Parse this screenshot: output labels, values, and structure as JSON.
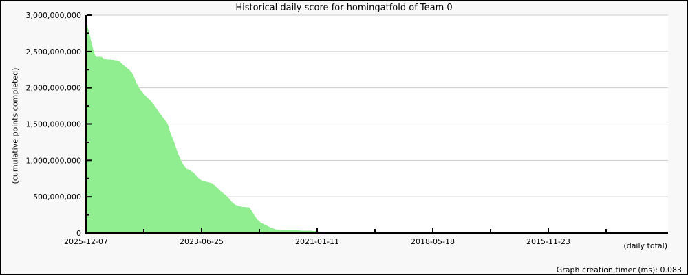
{
  "page": {
    "background_color": "#f8f8f8",
    "plot_background_color": "#ffffff",
    "border_color": "#000000"
  },
  "chart_data": {
    "type": "area",
    "title": "Historical daily score for homingatfold of Team 0",
    "ylabel": "(cumulative points completed)",
    "xlabel": "(daily total)",
    "footer": "Graph creation timer (ms): 0.083",
    "fill_color": "#90ee90",
    "grid_color": "#cccccc",
    "axis_color": "#000000",
    "grid": "horizontal major gridlines only",
    "legend": false,
    "ylim_points": [
      0,
      3000000000
    ],
    "y_tick_labels": [
      "3,000,000,000",
      "2,500,000,000",
      "2,000,000,000",
      "1,500,000,000",
      "1,000,000,000",
      "500,000,000",
      "0"
    ],
    "y_tick_values_millions": [
      3000,
      2500,
      2000,
      1500,
      1000,
      500,
      0
    ],
    "y_minor_tick_values_millions": [
      2750,
      2250,
      1750,
      1250,
      750,
      250
    ],
    "x_tick_labels": [
      "2025-12-07",
      "2023-06-25",
      "2021-01-11",
      "2018-05-18",
      "2015-11-23"
    ],
    "x_axis_note": "dates decrease to the right (newest at left), labeled ticks about 896 days apart with one unlabeled minor tick between each pair",
    "series": [
      {
        "name": "homingatfold cumulative points completed",
        "units": "points (values stored in millions)",
        "points_x_fraction_value_millions": [
          [
            0.0012,
            2880
          ],
          [
            0.0035,
            2800
          ],
          [
            0.0059,
            2720
          ],
          [
            0.0083,
            2640
          ],
          [
            0.0106,
            2560
          ],
          [
            0.013,
            2490
          ],
          [
            0.0154,
            2440
          ],
          [
            0.0177,
            2425
          ],
          [
            0.0272,
            2420
          ],
          [
            0.0296,
            2390
          ],
          [
            0.0414,
            2385
          ],
          [
            0.0567,
            2370
          ],
          [
            0.0591,
            2345
          ],
          [
            0.0627,
            2320
          ],
          [
            0.0662,
            2295
          ],
          [
            0.0709,
            2265
          ],
          [
            0.0745,
            2240
          ],
          [
            0.078,
            2210
          ],
          [
            0.0804,
            2180
          ],
          [
            0.0827,
            2130
          ],
          [
            0.0851,
            2080
          ],
          [
            0.0887,
            2030
          ],
          [
            0.0922,
            1975
          ],
          [
            0.0969,
            1930
          ],
          [
            0.1017,
            1890
          ],
          [
            0.1064,
            1850
          ],
          [
            0.1111,
            1815
          ],
          [
            0.1158,
            1765
          ],
          [
            0.1206,
            1715
          ],
          [
            0.1253,
            1655
          ],
          [
            0.13,
            1605
          ],
          [
            0.1348,
            1560
          ],
          [
            0.1383,
            1525
          ],
          [
            0.1418,
            1450
          ],
          [
            0.1454,
            1350
          ],
          [
            0.1501,
            1270
          ],
          [
            0.1537,
            1180
          ],
          [
            0.1584,
            1075
          ],
          [
            0.1631,
            990
          ],
          [
            0.1679,
            925
          ],
          [
            0.1726,
            880
          ],
          [
            0.1797,
            855
          ],
          [
            0.1856,
            820
          ],
          [
            0.1903,
            775
          ],
          [
            0.195,
            735
          ],
          [
            0.2009,
            710
          ],
          [
            0.2104,
            695
          ],
          [
            0.2163,
            680
          ],
          [
            0.221,
            650
          ],
          [
            0.227,
            605
          ],
          [
            0.2329,
            560
          ],
          [
            0.2388,
            525
          ],
          [
            0.2447,
            480
          ],
          [
            0.2494,
            430
          ],
          [
            0.2553,
            390
          ],
          [
            0.2612,
            368
          ],
          [
            0.2695,
            356
          ],
          [
            0.2801,
            348
          ],
          [
            0.2837,
            310
          ],
          [
            0.2884,
            245
          ],
          [
            0.2943,
            180
          ],
          [
            0.3002,
            140
          ],
          [
            0.3062,
            115
          ],
          [
            0.3121,
            92
          ],
          [
            0.318,
            68
          ],
          [
            0.3239,
            52
          ],
          [
            0.3298,
            42
          ],
          [
            0.3404,
            36
          ],
          [
            0.3605,
            32
          ],
          [
            0.3806,
            28
          ],
          [
            0.3972,
            24
          ],
          [
            0.4007,
            12
          ],
          [
            0.409,
            8
          ],
          [
            0.4137,
            0
          ]
        ]
      }
    ]
  }
}
